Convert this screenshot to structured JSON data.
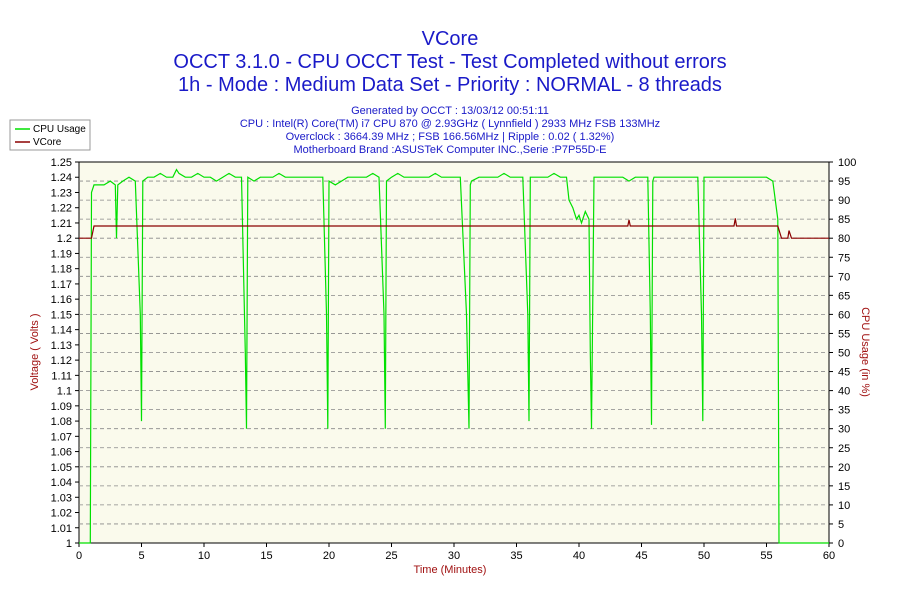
{
  "chart_data": {
    "type": "line",
    "title": "VCore",
    "subtitle_lines": [
      "OCCT 3.1.0 - CPU OCCT Test - Test Completed without errors",
      "1h - Mode : Medium Data Set - Priority : NORMAL - 8 threads"
    ],
    "info_lines": [
      "Generated by OCCT : 13/03/12 00:51:11",
      "CPU : Intel(R) Core(TM) i7 CPU 870 @ 2.93GHz ( Lynnfield ) 2933 MHz FSB 133MHz",
      "Overclock : 3664.39 MHz ; FSB 166.56MHz | Ripple : 0.02 ( 1.32%)",
      "Motherboard Brand :ASUSTeK Computer INC.,Serie :P7P55D-E"
    ],
    "xlabel": "Time (Minutes)",
    "ylabel": "Voltage ( Volts )",
    "y2label": "CPU Usage (in %)",
    "xlim": [
      0,
      60
    ],
    "ylim": [
      1.0,
      1.25
    ],
    "y2lim": [
      0,
      100
    ],
    "x_ticks": [
      "0",
      "5",
      "10",
      "15",
      "20",
      "25",
      "30",
      "35",
      "40",
      "45",
      "50",
      "55",
      "60"
    ],
    "y_ticks": [
      "1",
      "1.01",
      "1.02",
      "1.03",
      "1.04",
      "1.05",
      "1.06",
      "1.07",
      "1.08",
      "1.09",
      "1.1",
      "1.11",
      "1.12",
      "1.13",
      "1.14",
      "1.15",
      "1.16",
      "1.17",
      "1.18",
      "1.19",
      "1.2",
      "1.21",
      "1.22",
      "1.23",
      "1.24",
      "1.25"
    ],
    "y2_ticks": [
      "0",
      "5",
      "10",
      "15",
      "20",
      "25",
      "30",
      "35",
      "40",
      "45",
      "50",
      "55",
      "60",
      "65",
      "70",
      "75",
      "80",
      "85",
      "90",
      "95",
      "100"
    ],
    "grid": true,
    "legend_position": "top-left",
    "series": [
      {
        "name": "CPU Usage",
        "axis": "right",
        "color": "#00e000",
        "x": [
          0,
          0.9,
          1.0,
          1.2,
          1.5,
          2.0,
          2.5,
          2.9,
          3.0,
          3.1,
          3.5,
          4.0,
          4.5,
          4.9,
          5.0,
          5.1,
          5.5,
          6.0,
          6.5,
          7.0,
          7.5,
          7.8,
          8.0,
          8.5,
          9.0,
          9.5,
          10.0,
          10.5,
          11.0,
          11.5,
          12.0,
          12.5,
          13.0,
          13.3,
          13.4,
          13.5,
          14.0,
          14.5,
          15.0,
          15.5,
          16.0,
          16.5,
          17.0,
          17.5,
          18.0,
          18.5,
          19.0,
          19.5,
          19.8,
          19.9,
          20.0,
          20.5,
          21.0,
          21.5,
          22.0,
          22.5,
          23.0,
          23.5,
          24.0,
          24.4,
          24.5,
          24.6,
          25.0,
          25.5,
          26.0,
          26.5,
          27.0,
          27.5,
          28.0,
          28.5,
          29.0,
          29.5,
          30.0,
          30.5,
          31.0,
          31.2,
          31.3,
          31.4,
          32.0,
          32.5,
          33.0,
          33.5,
          34.0,
          34.5,
          35.0,
          35.5,
          35.9,
          36.0,
          36.1,
          36.5,
          37.0,
          37.5,
          38.0,
          38.5,
          39.0,
          39.2,
          39.5,
          39.8,
          40.0,
          40.2,
          40.5,
          40.8,
          40.9,
          41.0,
          41.2,
          41.5,
          42.0,
          42.5,
          43.0,
          43.5,
          44.0,
          44.5,
          45.0,
          45.5,
          45.7,
          45.8,
          45.9,
          46.0,
          46.5,
          47.0,
          47.5,
          48.0,
          48.5,
          49.0,
          49.5,
          49.8,
          49.9,
          50.0,
          50.5,
          51.0,
          51.5,
          52.0,
          52.5,
          53.0,
          53.5,
          54.0,
          54.5,
          55.0,
          55.5,
          55.9,
          56.0,
          56.5,
          57.0,
          58.0,
          59.0,
          60.0
        ],
        "values": [
          0,
          0,
          92,
          94,
          94,
          94,
          95,
          94,
          80,
          94,
          95,
          96,
          95,
          60,
          32,
          95,
          96,
          96,
          97,
          96,
          96,
          98,
          97,
          96,
          96,
          97,
          96,
          96,
          95,
          96,
          97,
          96,
          96,
          50,
          30,
          96,
          95,
          96,
          96,
          96,
          97,
          96,
          96,
          96,
          96,
          96,
          96,
          96,
          60,
          30,
          95,
          94,
          95,
          96,
          96,
          96,
          96,
          97,
          96,
          60,
          30,
          95,
          96,
          97,
          96,
          96,
          96,
          96,
          96,
          97,
          96,
          96,
          96,
          96,
          60,
          30,
          94,
          95,
          96,
          96,
          96,
          96,
          97,
          96,
          96,
          96,
          60,
          32,
          96,
          96,
          96,
          96,
          97,
          96,
          96,
          90,
          88,
          85,
          86,
          84,
          87,
          85,
          50,
          30,
          96,
          96,
          96,
          96,
          96,
          96,
          95,
          96,
          96,
          96,
          60,
          31,
          95,
          96,
          96,
          96,
          96,
          96,
          96,
          96,
          96,
          60,
          32,
          96,
          96,
          96,
          96,
          96,
          96,
          96,
          96,
          96,
          96,
          96,
          95,
          85,
          0,
          0,
          0,
          0,
          0,
          0
        ]
      },
      {
        "name": "VCore",
        "axis": "left",
        "color": "#8b0000",
        "x": [
          0,
          1.0,
          1.2,
          5.0,
          10.0,
          15.0,
          20.0,
          25.0,
          30.0,
          35.0,
          40.0,
          43.9,
          44.0,
          44.1,
          45.0,
          50.0,
          52.4,
          52.5,
          52.6,
          55.0,
          55.9,
          56.2,
          56.5,
          56.7,
          56.8,
          57.0,
          58.0,
          60.0
        ],
        "values": [
          1.2,
          1.2,
          1.208,
          1.208,
          1.208,
          1.208,
          1.208,
          1.208,
          1.208,
          1.208,
          1.208,
          1.208,
          1.212,
          1.208,
          1.208,
          1.208,
          1.208,
          1.213,
          1.208,
          1.208,
          1.208,
          1.2,
          1.2,
          1.2,
          1.205,
          1.2,
          1.2,
          1.2
        ]
      }
    ]
  }
}
